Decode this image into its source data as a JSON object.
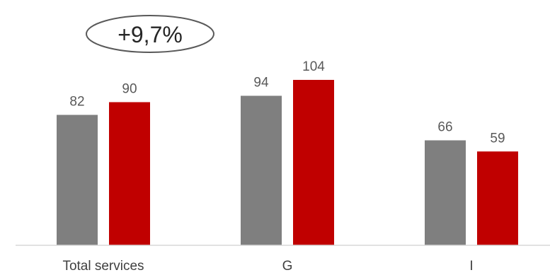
{
  "chart_data": {
    "type": "bar",
    "categories": [
      "Total services",
      "G",
      "I"
    ],
    "series": [
      {
        "values": [
          82,
          94,
          66
        ],
        "color": "#7f7f7f"
      },
      {
        "values": [
          90,
          104,
          59
        ],
        "color": "#c00000"
      }
    ],
    "annotation": "+9,7%",
    "ylim": [
      0,
      120
    ],
    "grid": false,
    "legend": "none"
  }
}
